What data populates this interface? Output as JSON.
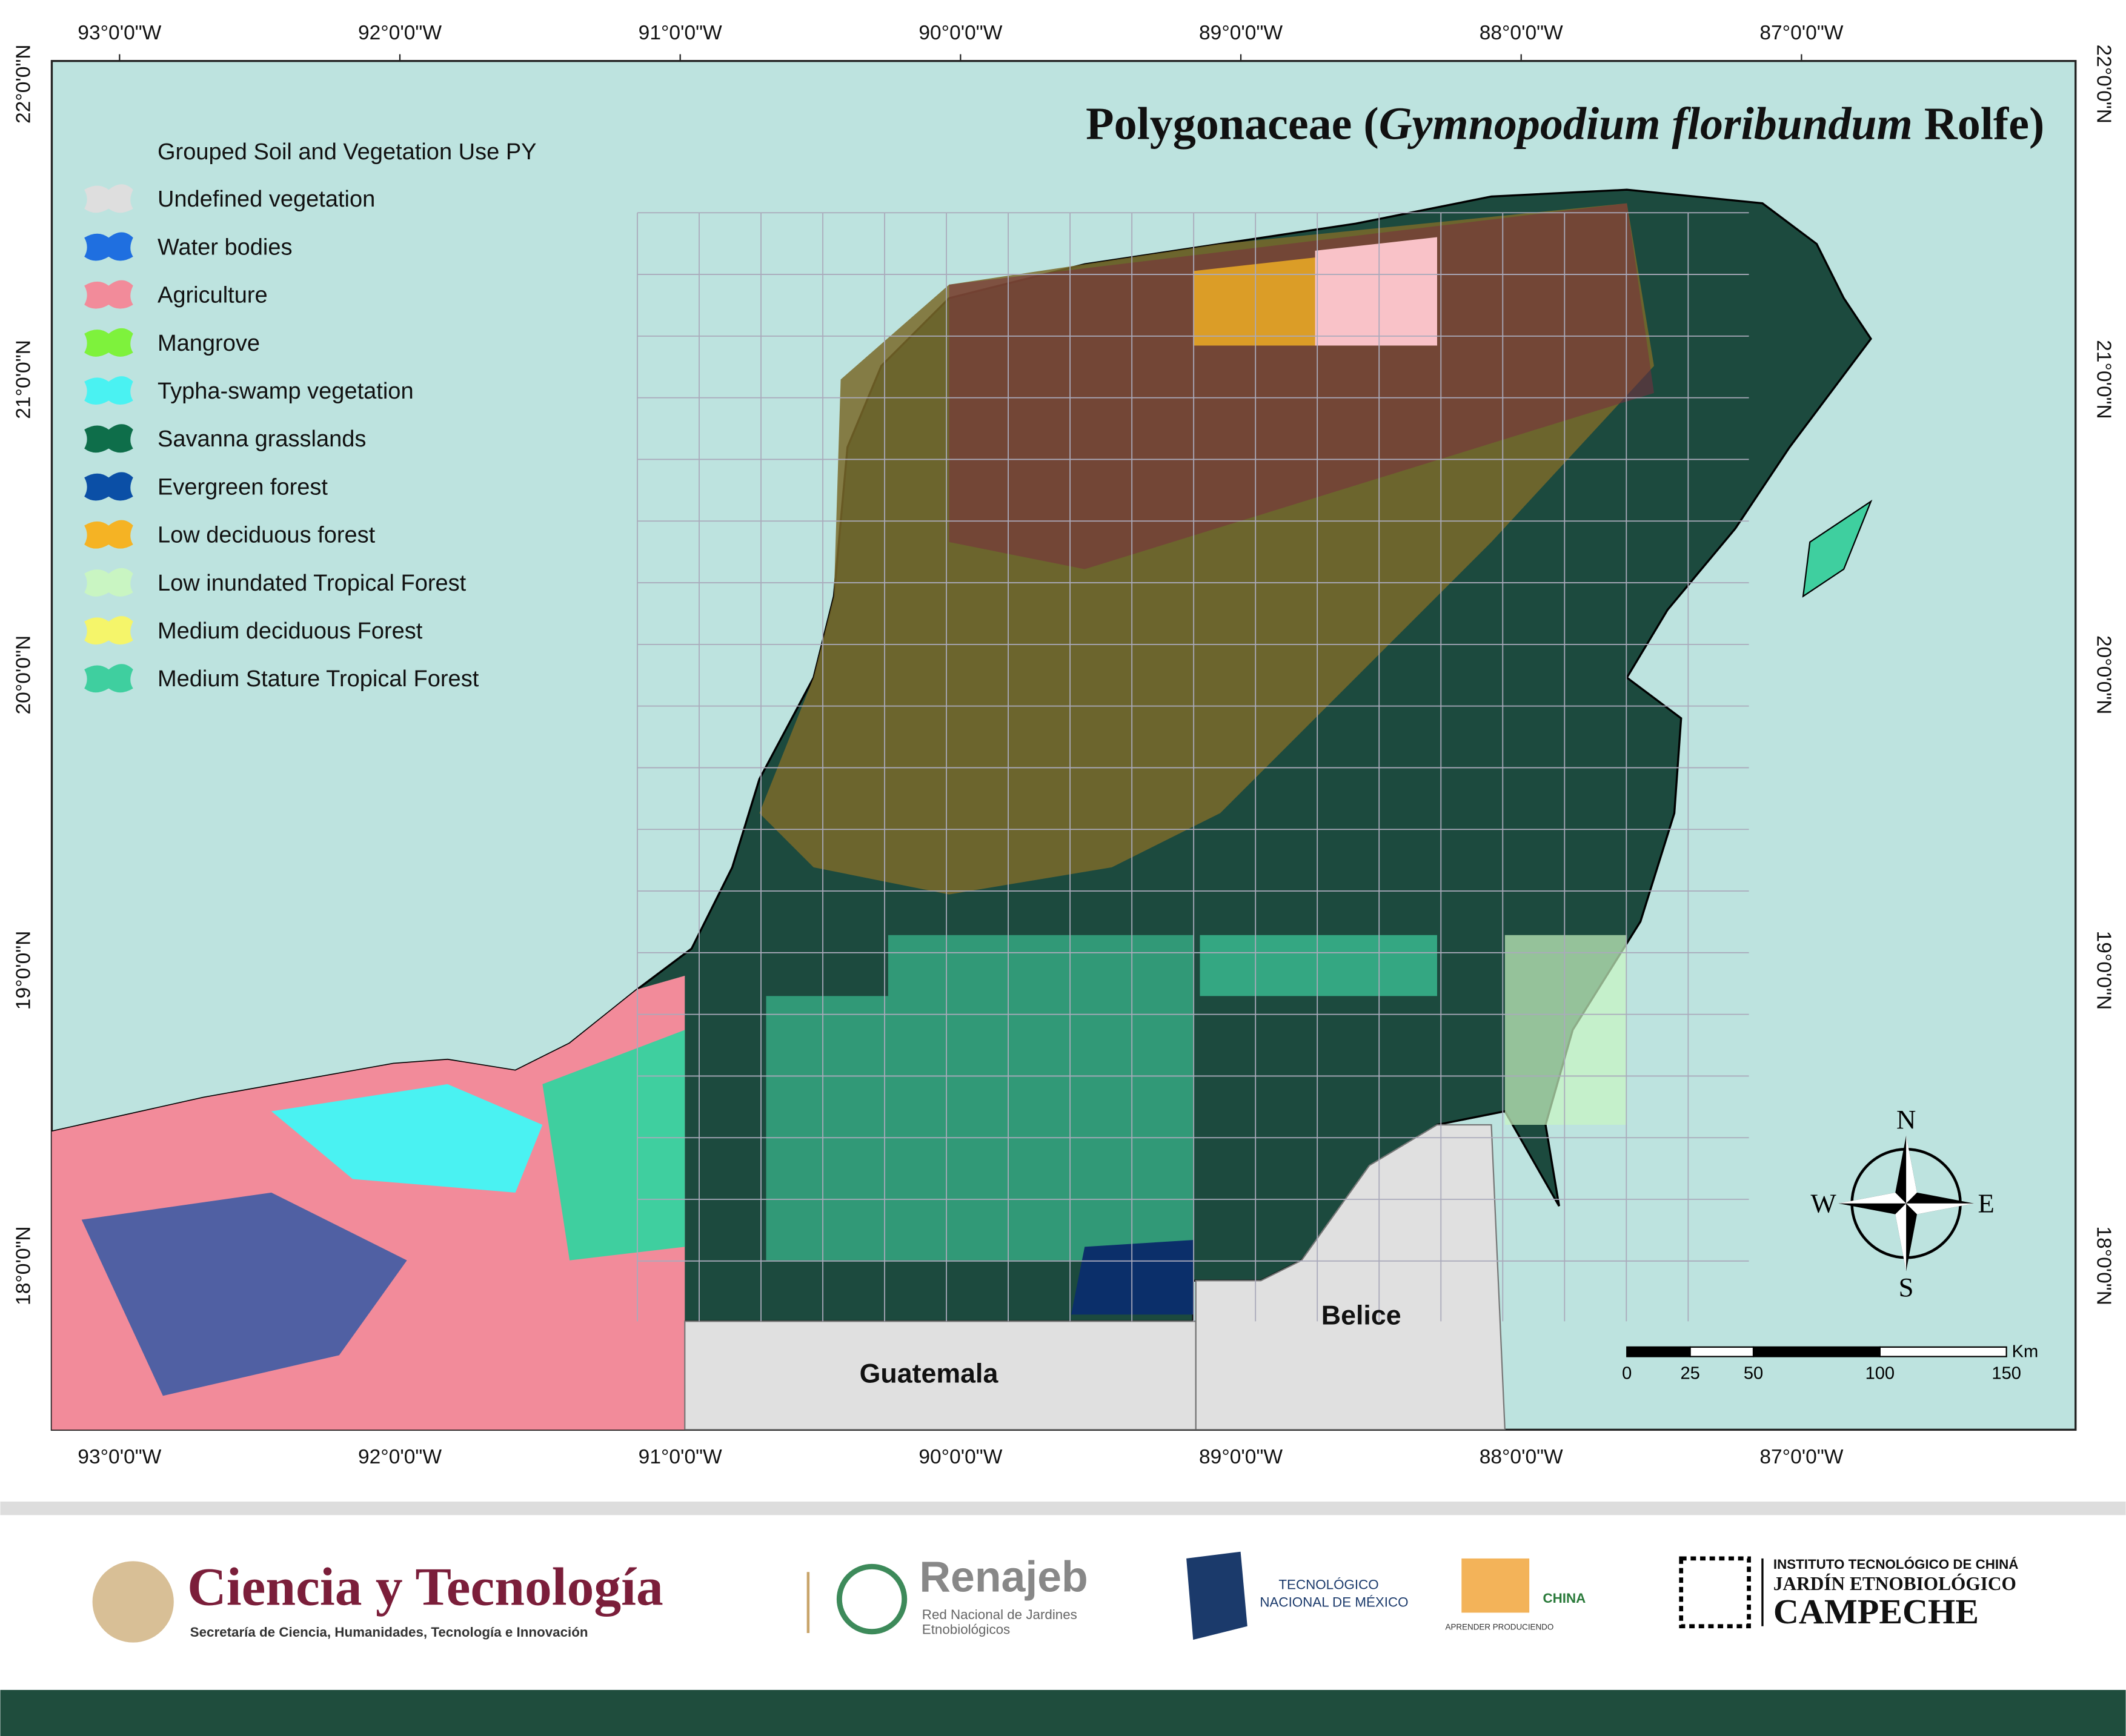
{
  "title": {
    "family": "Polygonaceae (",
    "species": "Gymnopodium floribundum",
    "author": " Rolfe)"
  },
  "legend": {
    "title": "Grouped Soil and Vegetation Use PY",
    "items": [
      {
        "label": "Undefined vegetation",
        "color": "#dedede"
      },
      {
        "label": "Water bodies",
        "color": "#1f6fe0"
      },
      {
        "label": "Agriculture",
        "color": "#f28b9a"
      },
      {
        "label": "Mangrove",
        "color": "#7ef23c"
      },
      {
        "label": "Typha-swamp vegetation",
        "color": "#4af2f2"
      },
      {
        "label": "Savanna grasslands",
        "color": "#0e6e4a"
      },
      {
        "label": "Evergreen forest",
        "color": "#0b4fa6"
      },
      {
        "label": "Low deciduous forest",
        "color": "#f5b324"
      },
      {
        "label": "Low inundated Tropical Forest",
        "color": "#c9f5c2"
      },
      {
        "label": "Medium deciduous Forest",
        "color": "#f5f56a"
      },
      {
        "label": "Medium Stature Tropical Forest",
        "color": "#3fcf9f"
      }
    ]
  },
  "longitude_labels": [
    "93°0'0\"W",
    "92°0'0\"W",
    "91°0'0\"W",
    "90°0'0\"W",
    "89°0'0\"W",
    "88°0'0\"W",
    "87°0'0\"W"
  ],
  "latitude_labels": [
    "22°0'0\"N",
    "21°0'0\"N",
    "20°0'0\"N",
    "19°0'0\"N",
    "18°0'0\"N"
  ],
  "places": {
    "belize": "Belice",
    "guatemala": "Guatemala"
  },
  "compass": {
    "north": "N",
    "south": "S",
    "east": "E",
    "west": "W"
  },
  "scale_bar": {
    "unit": "Km",
    "ticks": [
      0,
      25,
      50,
      100,
      150
    ]
  },
  "footer": {
    "secretariat_title": "Ciencia y Tecnología",
    "secretariat_subtitle": "Secretaría de Ciencia, Humanidades, Tecnología e Innovación",
    "renajeb_title": "Renajeb",
    "renajeb_subtitle_1": "Red Nacional de Jardines",
    "renajeb_subtitle_2": "Etnobiológicos",
    "tecnm_1": "TECNOLÓGICO",
    "tecnm_2": "NACIONAL DE MÉXICO",
    "itchina": "CHINA",
    "itchina_motto": "APRENDER PRODUCIENDO",
    "garden_1": "INSTITUTO TECNOLÓGICO DE CHINÁ",
    "garden_2": "JARDÍN ETNOBIOLÓGICO",
    "garden_3": "CAMPECHE"
  }
}
